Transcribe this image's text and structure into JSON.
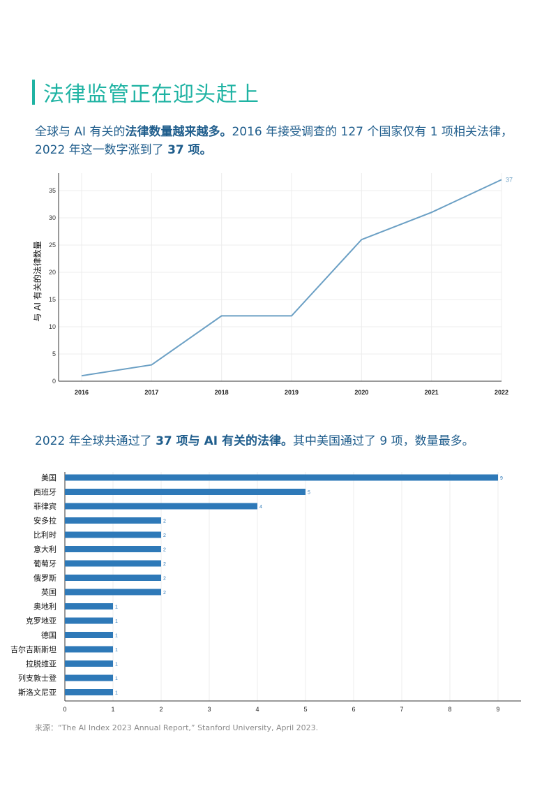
{
  "page": {
    "title": "法律监管正在迎头赶上",
    "desc1": {
      "before": "全球与 AI 有关的",
      "bold": "法律数量越来越多。",
      "after1": "2016 年接受调查的 127 个国家仅有 1 项相关法律，2022 年这一数字涨到了 ",
      "bold2": "37 项。",
      "after2": ""
    },
    "desc2": {
      "before": "2022 年全球共通过了 ",
      "bold": "37 项与 AI 有关的法律。",
      "after": "其中美国通过了 9 项，数量最多。"
    },
    "source": "来源：“The AI Index 2023 Annual Report,” Stanford University,  April 2023."
  },
  "colors": {
    "title": "#1fb3a3",
    "text": "#1f5d8c",
    "line": "#6a9fc4",
    "bar": "#2e79b8",
    "grid": "#ececec",
    "axis": "#333333"
  },
  "chart_data": [
    {
      "type": "line",
      "x": [
        "2016",
        "2017",
        "2018",
        "2019",
        "2020",
        "2021",
        "2022"
      ],
      "series": [
        {
          "values": [
            1,
            3,
            12,
            12,
            26,
            31,
            37
          ]
        }
      ],
      "last_label": "37",
      "ylabel": "与 AI 有关的法律数量",
      "yticks": [
        0,
        5,
        10,
        15,
        20,
        25,
        30,
        35
      ],
      "ylim": [
        0,
        37
      ],
      "grid": true
    },
    {
      "type": "bar",
      "orientation": "horizontal",
      "categories": [
        "美国",
        "西班牙",
        "菲律宾",
        "安多拉",
        "比利时",
        "意大利",
        "葡萄牙",
        "俄罗斯",
        "英国",
        "奥地利",
        "克罗地亚",
        "德国",
        "吉尔吉斯斯坦",
        "拉脱维亚",
        "列支敦士登",
        "斯洛文尼亚"
      ],
      "values": [
        9,
        5,
        4,
        2,
        2,
        2,
        2,
        2,
        2,
        1,
        1,
        1,
        1,
        1,
        1,
        1
      ],
      "xticks": [
        0,
        1,
        2,
        3,
        4,
        5,
        6,
        7,
        8,
        9
      ],
      "xlim": [
        0,
        9
      ],
      "grid": true
    }
  ]
}
